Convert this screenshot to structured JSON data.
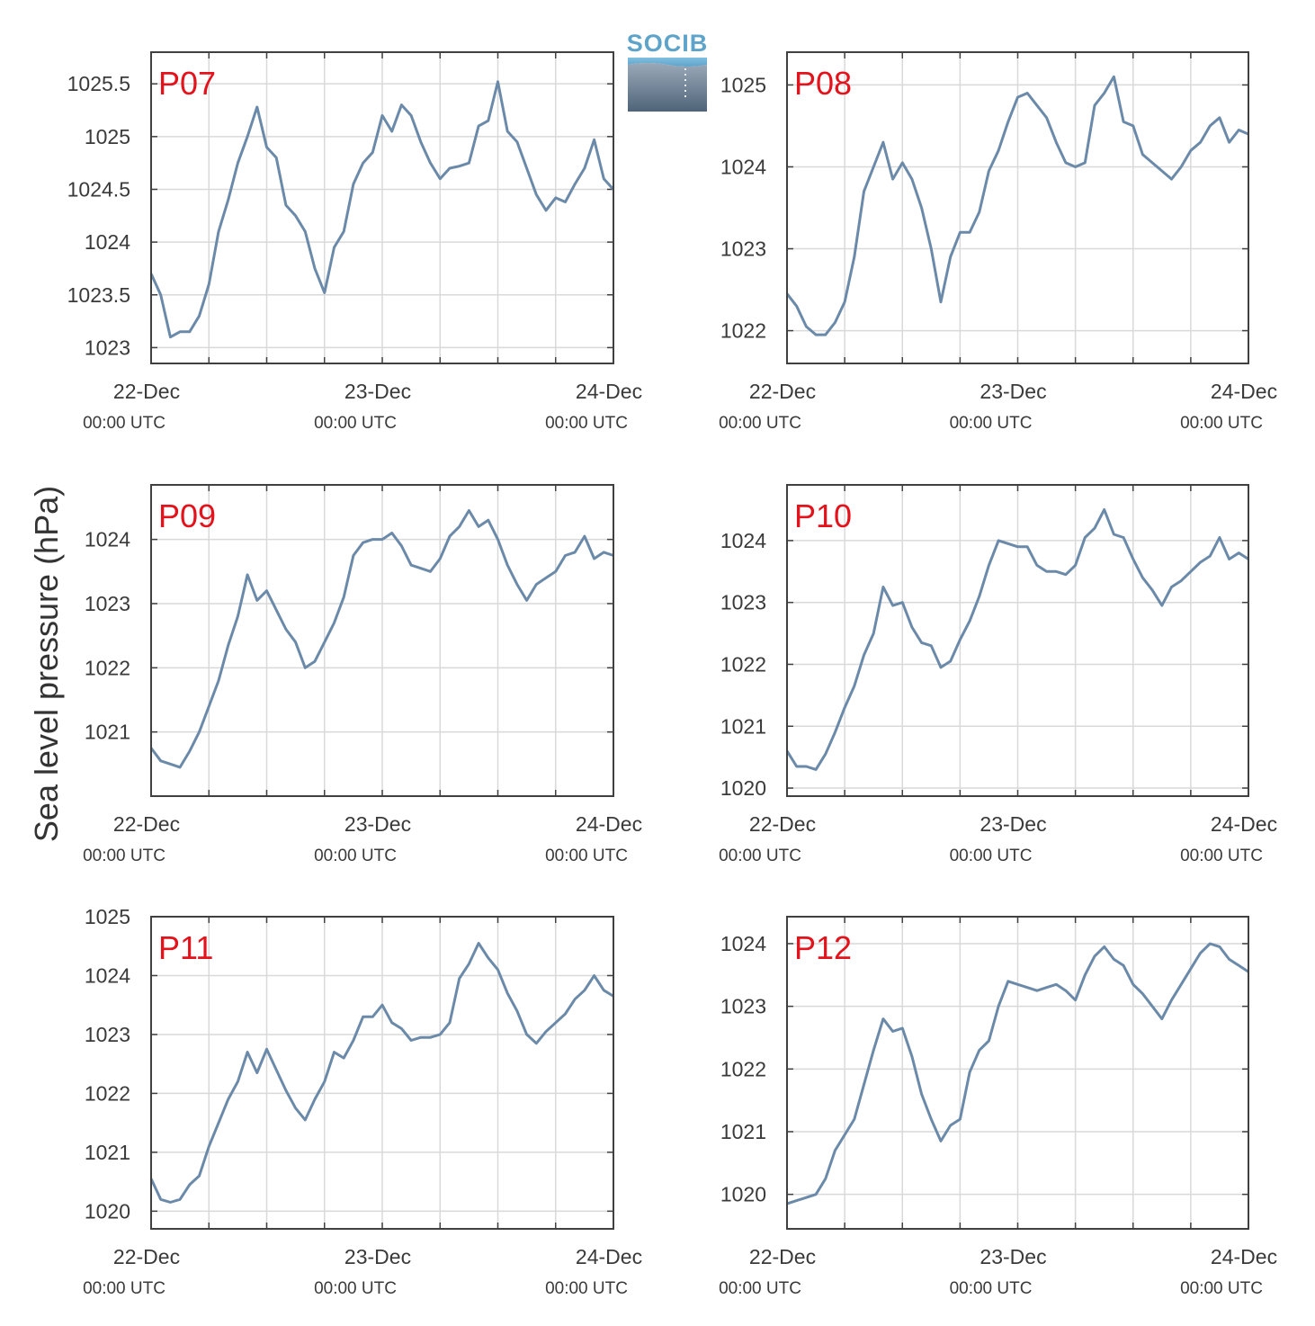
{
  "y_axis_label": "Sea level pressure (hPa)",
  "logo": {
    "text": "SOCIB"
  },
  "colors": {
    "line": "#6b8aa9",
    "label": "#e3121b",
    "grid": "#d9d9d9",
    "axes": "#404040"
  },
  "chart_data": [
    {
      "type": "line",
      "name": "P07",
      "x_ticks": [
        {
          "date": "22-Dec",
          "time": "00:00 UTC"
        },
        {
          "date": "23-Dec",
          "time": "00:00 UTC"
        },
        {
          "date": "24-Dec",
          "time": "00:00 UTC"
        }
      ],
      "xlim": [
        "2022-12-22T00:00",
        "2022-12-24T00:00"
      ],
      "ylim": [
        1022.85,
        1025.8
      ],
      "yticks": [
        1023,
        1023.5,
        1024,
        1024.5,
        1025,
        1025.5
      ],
      "ytick_labels": [
        "1023",
        "1023.5",
        "1024",
        "1024.5",
        "1025",
        "1025.5"
      ],
      "x": [
        "22 00:00",
        "22 01:00",
        "22 02:00",
        "22 03:00",
        "22 04:00",
        "22 05:00",
        "22 06:00",
        "22 07:00",
        "22 08:00",
        "22 09:00",
        "22 10:00",
        "22 11:00",
        "22 12:00",
        "22 13:00",
        "22 14:00",
        "22 15:00",
        "22 16:00",
        "22 17:00",
        "22 18:00",
        "22 19:00",
        "22 20:00",
        "22 21:00",
        "22 22:00",
        "22 23:00",
        "23 00:00",
        "23 01:00",
        "23 02:00",
        "23 03:00",
        "23 04:00",
        "23 05:00",
        "23 06:00",
        "23 07:00",
        "23 08:00",
        "23 09:00",
        "23 10:00",
        "23 11:00",
        "23 12:00",
        "23 13:00",
        "23 14:00",
        "23 15:00",
        "23 16:00",
        "23 17:00",
        "23 18:00",
        "23 19:00",
        "23 20:00",
        "23 21:00",
        "23 22:00",
        "23 23:00",
        "24 00:00"
      ],
      "values": [
        1023.7,
        1023.5,
        1023.1,
        1023.15,
        1023.15,
        1023.3,
        1023.6,
        1024.1,
        1024.4,
        1024.75,
        1025.0,
        1025.28,
        1024.9,
        1024.8,
        1024.35,
        1024.25,
        1024.1,
        1023.75,
        1023.52,
        1023.95,
        1024.1,
        1024.55,
        1024.75,
        1024.85,
        1025.2,
        1025.05,
        1025.3,
        1025.2,
        1024.95,
        1024.75,
        1024.6,
        1024.7,
        1024.72,
        1024.75,
        1025.1,
        1025.15,
        1025.52,
        1025.05,
        1024.95,
        1024.7,
        1024.45,
        1024.3,
        1024.42,
        1024.38,
        1024.55,
        1024.7,
        1024.97,
        1024.6,
        1024.5
      ]
    },
    {
      "type": "line",
      "name": "P08",
      "x_ticks": [
        {
          "date": "22-Dec",
          "time": "00:00 UTC"
        },
        {
          "date": "23-Dec",
          "time": "00:00 UTC"
        },
        {
          "date": "24-Dec",
          "time": "00:00 UTC"
        }
      ],
      "xlim": [
        "2022-12-22T00:00",
        "2022-12-24T00:00"
      ],
      "ylim": [
        1021.6,
        1025.4
      ],
      "yticks": [
        1022,
        1023,
        1024,
        1025
      ],
      "ytick_labels": [
        "1022",
        "1023",
        "1024",
        "1025"
      ],
      "x": [
        "22 00:00",
        "22 01:00",
        "22 02:00",
        "22 03:00",
        "22 04:00",
        "22 05:00",
        "22 06:00",
        "22 07:00",
        "22 08:00",
        "22 09:00",
        "22 10:00",
        "22 11:00",
        "22 12:00",
        "22 13:00",
        "22 14:00",
        "22 15:00",
        "22 16:00",
        "22 17:00",
        "22 18:00",
        "22 19:00",
        "22 20:00",
        "22 21:00",
        "22 22:00",
        "22 23:00",
        "23 00:00",
        "23 01:00",
        "23 02:00",
        "23 03:00",
        "23 04:00",
        "23 05:00",
        "23 06:00",
        "23 07:00",
        "23 08:00",
        "23 09:00",
        "23 10:00",
        "23 11:00",
        "23 12:00",
        "23 13:00",
        "23 14:00",
        "23 15:00",
        "23 16:00",
        "23 17:00",
        "23 18:00",
        "23 19:00",
        "23 20:00",
        "23 21:00",
        "23 22:00",
        "23 23:00",
        "24 00:00"
      ],
      "values": [
        1022.45,
        1022.3,
        1022.05,
        1021.95,
        1021.95,
        1022.1,
        1022.35,
        1022.9,
        1023.7,
        1024.0,
        1024.3,
        1023.85,
        1024.05,
        1023.85,
        1023.5,
        1023.0,
        1022.35,
        1022.9,
        1023.2,
        1023.2,
        1023.45,
        1023.95,
        1024.2,
        1024.55,
        1024.85,
        1024.9,
        1024.75,
        1024.6,
        1024.3,
        1024.05,
        1024.0,
        1024.05,
        1024.75,
        1024.9,
        1025.1,
        1024.55,
        1024.5,
        1024.15,
        1024.05,
        1023.95,
        1023.85,
        1024.0,
        1024.2,
        1024.3,
        1024.5,
        1024.6,
        1024.3,
        1024.45,
        1024.4
      ]
    },
    {
      "type": "line",
      "name": "P09",
      "x_ticks": [
        {
          "date": "22-Dec",
          "time": "00:00 UTC"
        },
        {
          "date": "23-Dec",
          "time": "00:00 UTC"
        },
        {
          "date": "24-Dec",
          "time": "00:00 UTC"
        }
      ],
      "xlim": [
        "2022-12-22T00:00",
        "2022-12-24T00:00"
      ],
      "ylim": [
        1020.0,
        1024.85
      ],
      "yticks": [
        1021,
        1022,
        1023,
        1024
      ],
      "ytick_labels": [
        "1021",
        "1022",
        "1023",
        "1024"
      ],
      "x": [
        "22 00:00",
        "22 01:00",
        "22 02:00",
        "22 03:00",
        "22 04:00",
        "22 05:00",
        "22 06:00",
        "22 07:00",
        "22 08:00",
        "22 09:00",
        "22 10:00",
        "22 11:00",
        "22 12:00",
        "22 13:00",
        "22 14:00",
        "22 15:00",
        "22 16:00",
        "22 17:00",
        "22 18:00",
        "22 19:00",
        "22 20:00",
        "22 21:00",
        "22 22:00",
        "22 23:00",
        "23 00:00",
        "23 01:00",
        "23 02:00",
        "23 03:00",
        "23 04:00",
        "23 05:00",
        "23 06:00",
        "23 07:00",
        "23 08:00",
        "23 09:00",
        "23 10:00",
        "23 11:00",
        "23 12:00",
        "23 13:00",
        "23 14:00",
        "23 15:00",
        "23 16:00",
        "23 17:00",
        "23 18:00",
        "23 19:00",
        "23 20:00",
        "23 21:00",
        "23 22:00",
        "23 23:00",
        "24 00:00"
      ],
      "values": [
        1020.75,
        1020.55,
        1020.5,
        1020.45,
        1020.7,
        1021.0,
        1021.4,
        1021.8,
        1022.35,
        1022.8,
        1023.45,
        1023.05,
        1023.2,
        1022.9,
        1022.6,
        1022.4,
        1022.0,
        1022.1,
        1022.4,
        1022.7,
        1023.1,
        1023.75,
        1023.95,
        1024.0,
        1024.0,
        1024.1,
        1023.9,
        1023.6,
        1023.55,
        1023.5,
        1023.7,
        1024.05,
        1024.2,
        1024.45,
        1024.2,
        1024.3,
        1024.0,
        1023.6,
        1023.3,
        1023.05,
        1023.3,
        1023.4,
        1023.5,
        1023.75,
        1023.8,
        1024.05,
        1023.7,
        1023.8,
        1023.75
      ]
    },
    {
      "type": "line",
      "name": "P10",
      "x_ticks": [
        {
          "date": "22-Dec",
          "time": "00:00 UTC"
        },
        {
          "date": "23-Dec",
          "time": "00:00 UTC"
        },
        {
          "date": "24-Dec",
          "time": "00:00 UTC"
        }
      ],
      "xlim": [
        "2022-12-22T00:00",
        "2022-12-24T00:00"
      ],
      "ylim": [
        1019.87,
        1024.9
      ],
      "yticks": [
        1020,
        1021,
        1022,
        1023,
        1024
      ],
      "ytick_labels": [
        "1020",
        "1021",
        "1022",
        "1023",
        "1024"
      ],
      "x": [
        "22 00:00",
        "22 01:00",
        "22 02:00",
        "22 03:00",
        "22 04:00",
        "22 05:00",
        "22 06:00",
        "22 07:00",
        "22 08:00",
        "22 09:00",
        "22 10:00",
        "22 11:00",
        "22 12:00",
        "22 13:00",
        "22 14:00",
        "22 15:00",
        "22 16:00",
        "22 17:00",
        "22 18:00",
        "22 19:00",
        "22 20:00",
        "22 21:00",
        "22 22:00",
        "22 23:00",
        "23 00:00",
        "23 01:00",
        "23 02:00",
        "23 03:00",
        "23 04:00",
        "23 05:00",
        "23 06:00",
        "23 07:00",
        "23 08:00",
        "23 09:00",
        "23 10:00",
        "23 11:00",
        "23 12:00",
        "23 13:00",
        "23 14:00",
        "23 15:00",
        "23 16:00",
        "23 17:00",
        "23 18:00",
        "23 19:00",
        "23 20:00",
        "23 21:00",
        "23 22:00",
        "23 23:00",
        "24 00:00"
      ],
      "values": [
        1020.6,
        1020.35,
        1020.35,
        1020.3,
        1020.55,
        1020.9,
        1021.3,
        1021.65,
        1022.15,
        1022.5,
        1023.25,
        1022.95,
        1023.0,
        1022.6,
        1022.35,
        1022.3,
        1021.95,
        1022.05,
        1022.4,
        1022.7,
        1023.1,
        1023.6,
        1024.0,
        1023.95,
        1023.9,
        1023.9,
        1023.6,
        1023.5,
        1023.5,
        1023.45,
        1023.6,
        1024.05,
        1024.2,
        1024.5,
        1024.1,
        1024.05,
        1023.7,
        1023.4,
        1023.2,
        1022.95,
        1023.25,
        1023.35,
        1023.5,
        1023.65,
        1023.75,
        1024.05,
        1023.7,
        1023.8,
        1023.7
      ]
    },
    {
      "type": "line",
      "name": "P11",
      "x_ticks": [
        {
          "date": "22-Dec",
          "time": "00:00 UTC"
        },
        {
          "date": "23-Dec",
          "time": "00:00 UTC"
        },
        {
          "date": "24-Dec",
          "time": "00:00 UTC"
        }
      ],
      "xlim": [
        "2022-12-22T00:00",
        "2022-12-24T00:00"
      ],
      "ylim": [
        1019.7,
        1025.0
      ],
      "yticks": [
        1020,
        1021,
        1022,
        1023,
        1024,
        1025
      ],
      "ytick_labels": [
        "1020",
        "1021",
        "1022",
        "1023",
        "1024",
        "1025"
      ],
      "x": [
        "22 00:00",
        "22 01:00",
        "22 02:00",
        "22 03:00",
        "22 04:00",
        "22 05:00",
        "22 06:00",
        "22 07:00",
        "22 08:00",
        "22 09:00",
        "22 10:00",
        "22 11:00",
        "22 12:00",
        "22 13:00",
        "22 14:00",
        "22 15:00",
        "22 16:00",
        "22 17:00",
        "22 18:00",
        "22 19:00",
        "22 20:00",
        "22 21:00",
        "22 22:00",
        "22 23:00",
        "23 00:00",
        "23 01:00",
        "23 02:00",
        "23 03:00",
        "23 04:00",
        "23 05:00",
        "23 06:00",
        "23 07:00",
        "23 08:00",
        "23 09:00",
        "23 10:00",
        "23 11:00",
        "23 12:00",
        "23 13:00",
        "23 14:00",
        "23 15:00",
        "23 16:00",
        "23 17:00",
        "23 18:00",
        "23 19:00",
        "23 20:00",
        "23 21:00",
        "23 22:00",
        "23 23:00",
        "24 00:00"
      ],
      "values": [
        1020.55,
        1020.2,
        1020.15,
        1020.2,
        1020.45,
        1020.6,
        1021.1,
        1021.5,
        1021.9,
        1022.2,
        1022.7,
        1022.35,
        1022.75,
        1022.4,
        1022.05,
        1021.75,
        1021.55,
        1021.9,
        1022.2,
        1022.7,
        1022.6,
        1022.9,
        1023.3,
        1023.3,
        1023.5,
        1023.2,
        1023.1,
        1022.9,
        1022.95,
        1022.95,
        1023.0,
        1023.2,
        1023.95,
        1024.2,
        1024.55,
        1024.3,
        1024.1,
        1023.7,
        1023.4,
        1023.0,
        1022.85,
        1023.05,
        1023.2,
        1023.35,
        1023.6,
        1023.75,
        1024.0,
        1023.75,
        1023.65
      ]
    },
    {
      "type": "line",
      "name": "P12",
      "x_ticks": [
        {
          "date": "22-Dec",
          "time": "00:00 UTC"
        },
        {
          "date": "23-Dec",
          "time": "00:00 UTC"
        },
        {
          "date": "24-Dec",
          "time": "00:00 UTC"
        }
      ],
      "xlim": [
        "2022-12-22T00:00",
        "2022-12-24T00:00"
      ],
      "ylim": [
        1019.45,
        1024.43
      ],
      "yticks": [
        1020,
        1021,
        1022,
        1023,
        1024
      ],
      "ytick_labels": [
        "1020",
        "1021",
        "1022",
        "1023",
        "1024"
      ],
      "x": [
        "22 00:00",
        "22 01:00",
        "22 02:00",
        "22 03:00",
        "22 04:00",
        "22 05:00",
        "22 06:00",
        "22 07:00",
        "22 08:00",
        "22 09:00",
        "22 10:00",
        "22 11:00",
        "22 12:00",
        "22 13:00",
        "22 14:00",
        "22 15:00",
        "22 16:00",
        "22 17:00",
        "22 18:00",
        "22 19:00",
        "22 20:00",
        "22 21:00",
        "22 22:00",
        "22 23:00",
        "23 00:00",
        "23 01:00",
        "23 02:00",
        "23 03:00",
        "23 04:00",
        "23 05:00",
        "23 06:00",
        "23 07:00",
        "23 08:00",
        "23 09:00",
        "23 10:00",
        "23 11:00",
        "23 12:00",
        "23 13:00",
        "23 14:00",
        "23 15:00",
        "23 16:00",
        "23 17:00",
        "23 18:00",
        "23 19:00",
        "23 20:00",
        "23 21:00",
        "23 22:00",
        "23 23:00",
        "24 00:00"
      ],
      "values": [
        1019.85,
        1019.9,
        1019.95,
        1020.0,
        1020.25,
        1020.7,
        1020.95,
        1021.2,
        1021.75,
        1022.3,
        1022.8,
        1022.6,
        1022.65,
        1022.2,
        1021.6,
        1021.2,
        1020.85,
        1021.1,
        1021.2,
        1021.95,
        1022.3,
        1022.45,
        1023.0,
        1023.4,
        1023.35,
        1023.3,
        1023.25,
        1023.3,
        1023.35,
        1023.25,
        1023.1,
        1023.5,
        1023.8,
        1023.95,
        1023.75,
        1023.65,
        1023.35,
        1023.2,
        1023.0,
        1022.8,
        1023.1,
        1023.35,
        1023.6,
        1023.85,
        1024.0,
        1023.95,
        1023.75,
        1023.65,
        1023.55
      ]
    }
  ]
}
